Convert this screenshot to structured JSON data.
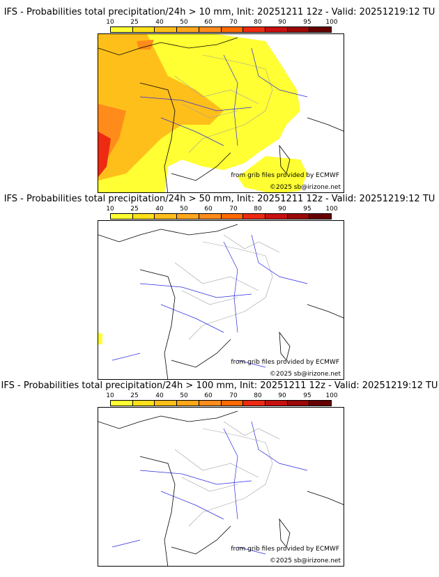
{
  "scale": {
    "labels": [
      "10",
      "25",
      "40",
      "50",
      "60",
      "70",
      "80",
      "90",
      "95",
      "100"
    ],
    "colors": [
      "#ffff33",
      "#ffe01a",
      "#ffbf1a",
      "#ffa61a",
      "#ff8c1a",
      "#ff6a00",
      "#ee2a12",
      "#c81010",
      "#9a0808",
      "#660000"
    ]
  },
  "panels": [
    {
      "title": "IFS - Probabilities total precipitation/24h > 10 mm, Init: 20251211 12z - Valid: 20251219:12 TU",
      "credit_source": "from grib files provided by ECMWF",
      "credit_copyright": "©2025 sb@irizone.net"
    },
    {
      "title": "IFS - Probabilities total precipitation/24h > 50 mm, Init: 20251211 12z - Valid: 20251219:12 TU",
      "credit_source": "from grib files provided by ECMWF",
      "credit_copyright": "©2025 sb@irizone.net"
    },
    {
      "title": "IFS - Probabilities total precipitation/24h > 100 mm, Init: 20251211 12z - Valid: 20251219:12 TU",
      "credit_source": "from grib files provided by ECMWF",
      "credit_copyright": "©2025 sb@irizone.net"
    }
  ],
  "colors": {
    "coast": "#000000",
    "rivers": "#2a2ae0",
    "borders": "#a0a0a0"
  }
}
